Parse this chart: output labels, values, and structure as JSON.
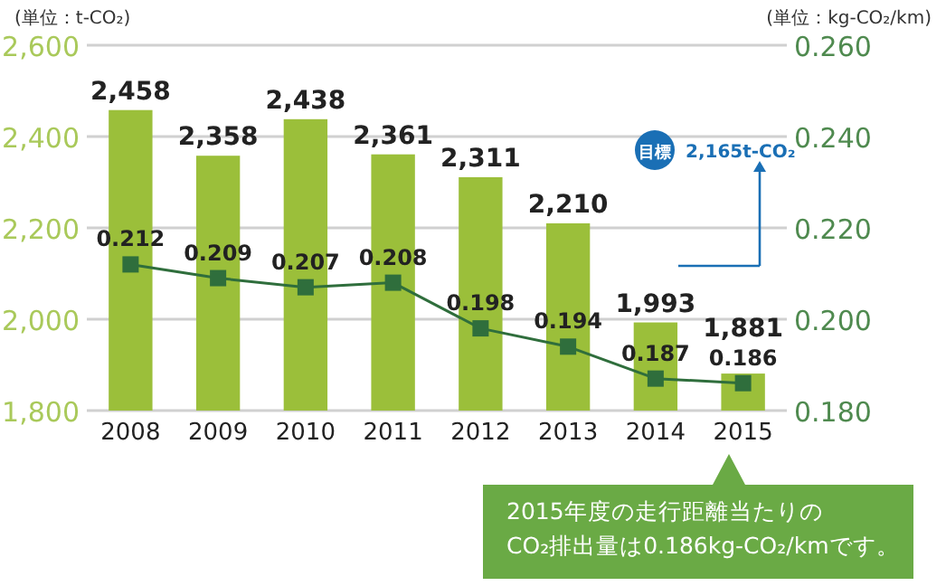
{
  "chart_data": {
    "type": "bar",
    "ylabel": "(単位：t-CO₂)",
    "y2label": "(単位：kg-CO₂/km)",
    "categories": [
      "2008",
      "2009",
      "2010",
      "2011",
      "2012",
      "2013",
      "2014",
      "2015"
    ],
    "series": [
      {
        "color": "#9bbf3a",
        "values": [
          2458,
          2358,
          2438,
          2361,
          2311,
          2210,
          1993,
          1881
        ],
        "value_labels": [
          "2,458",
          "2,358",
          "2,438",
          "2,361",
          "2,311",
          "2,210",
          "1,993",
          "1,881"
        ]
      },
      {
        "type": "line",
        "axis": "y2",
        "color": "#2f6e3c",
        "marker": "square",
        "values": [
          0.212,
          0.209,
          0.207,
          0.208,
          0.198,
          0.194,
          0.187,
          0.186
        ]
      }
    ],
    "ylim": [
      1800,
      2600
    ],
    "yticks": [
      {
        "value": 1800,
        "label": "1,800"
      },
      {
        "value": 2000,
        "label": "2,000"
      },
      {
        "value": 2200,
        "label": "2,200"
      },
      {
        "value": 2400,
        "label": "2,400"
      },
      {
        "value": 2600,
        "label": "2,600"
      }
    ],
    "y2lim": [
      0.18,
      0.26
    ],
    "y2ticks": [
      {
        "value": 0.18,
        "label": "0.180"
      },
      {
        "value": 0.2,
        "label": "0.200"
      },
      {
        "value": 0.22,
        "label": "0.220"
      },
      {
        "value": 0.24,
        "label": "0.240"
      },
      {
        "value": 0.26,
        "label": "0.260"
      }
    ],
    "grid": "y",
    "data_labels": true,
    "annotations": [
      "目標",
      "2,165t-CO₂",
      "2015年度の走行距離当たりの\nCO₂排出量は0.186kg-CO₂/kmです。"
    ]
  }
}
